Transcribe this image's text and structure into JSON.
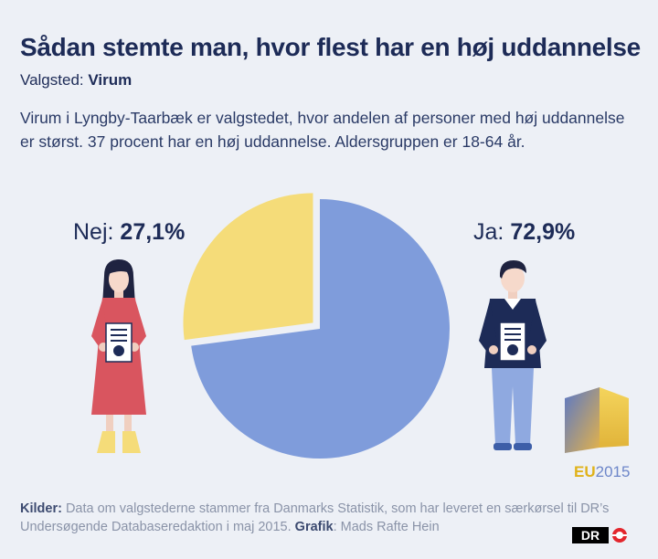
{
  "title": "Sådan stemte man, hvor flest har en høj uddannelse",
  "subtitle": {
    "label": "Valgsted:",
    "value": "Virum"
  },
  "intro": "Virum i Lyngby-Taarbæk er valgstedet, hvor andelen af personer med høj uddannelse er størst. 37 procent har en høj uddannelse. Aldersgruppen er 18-64 år.",
  "labels": {
    "nej": {
      "name": "Nej:",
      "value": "27,1%"
    },
    "ja": {
      "name": "Ja:",
      "value": "72,9%"
    }
  },
  "chart_data": {
    "type": "pie",
    "title": "Sådan stemte man, hvor flest har en høj uddannelse",
    "slices": [
      {
        "label": "Ja",
        "value": 72.9,
        "color": "#7f9cdb"
      },
      {
        "label": "Nej",
        "value": 27.1,
        "color": "#f5dc79"
      }
    ],
    "unit": "%"
  },
  "badge": {
    "eu": "EU",
    "year": "2015"
  },
  "footer": {
    "sources_label": "Kilder:",
    "sources_text": "Data om valgstederne stammer fra Danmarks Statistik, som har leveret en særkørsel til DR’s Undersøgende Databaseredaktion i maj 2015.",
    "graphic_label": "Grafik",
    "graphic_text": ": Mads Rafte Hein"
  },
  "logo": "DR",
  "colors": {
    "navy": "#1d2b57",
    "background": "#edf0f6",
    "ja": "#7f9cdb",
    "nej": "#f5dc79",
    "eu_yellow": "#e0b21a"
  }
}
